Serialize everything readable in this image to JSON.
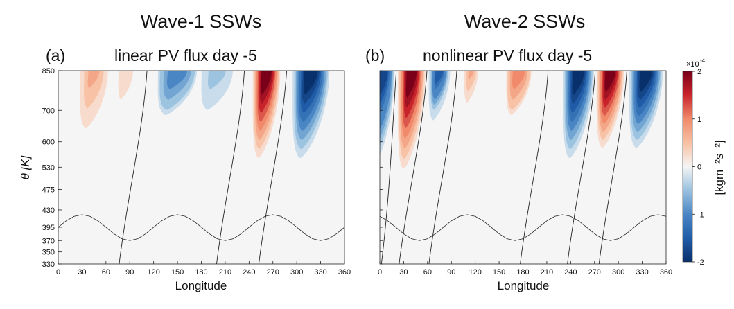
{
  "headings": {
    "left": "Wave-1 SSWs",
    "right": "Wave-2 SSWs"
  },
  "colors": {
    "neg_strong": "#08306b",
    "neg_mid": "#4a86c4",
    "neutral": "#f5f5f5",
    "pos_mid": "#f08a6a",
    "pos_strong": "#7a0019",
    "contour": "#222222"
  },
  "chart_data": [
    {
      "type": "heatmap",
      "panel": "(a)",
      "title": "linear PV flux day -5",
      "xlabel": "Longitude",
      "ylabel": "θ [K]",
      "xlim": [
        0,
        360
      ],
      "x_ticks": [
        0,
        30,
        60,
        90,
        120,
        150,
        180,
        210,
        240,
        270,
        300,
        330,
        360
      ],
      "y_ticks": [
        330,
        350,
        370,
        395,
        430,
        475,
        530,
        600,
        700,
        850
      ],
      "zero_contour": "black",
      "features": [
        {
          "lon": 45,
          "theta_top": 850,
          "theta_bottom": 600,
          "peak": 7e-05,
          "width": 20
        },
        {
          "lon": 85,
          "theta_top": 850,
          "theta_bottom": 650,
          "peak": 2.5e-05,
          "width": 15
        },
        {
          "lon": 150,
          "theta_top": 850,
          "theta_bottom": 650,
          "peak": -0.00011,
          "width": 28
        },
        {
          "lon": 200,
          "theta_top": 850,
          "theta_bottom": 650,
          "peak": -5e-05,
          "width": 25
        },
        {
          "lon": 262,
          "theta_top": 850,
          "theta_bottom": 530,
          "peak": 0.0002,
          "width": 18
        },
        {
          "lon": 318,
          "theta_top": 850,
          "theta_bottom": 530,
          "peak": -0.00019,
          "width": 24
        }
      ]
    },
    {
      "type": "heatmap",
      "panel": "(b)",
      "title": "nonlinear PV flux day -5",
      "xlabel": "Longitude",
      "ylabel": "",
      "xlim": [
        0,
        360
      ],
      "x_ticks": [
        0,
        30,
        60,
        90,
        120,
        150,
        180,
        210,
        240,
        270,
        300,
        330,
        360
      ],
      "y_ticks": [
        330,
        350,
        370,
        395,
        430,
        475,
        530,
        600,
        700,
        850
      ],
      "zero_contour": "black",
      "features": [
        {
          "lon": 5,
          "theta_top": 850,
          "theta_bottom": 530,
          "peak": -0.00018,
          "width": 14
        },
        {
          "lon": 40,
          "theta_top": 850,
          "theta_bottom": 500,
          "peak": 0.0002,
          "width": 18
        },
        {
          "lon": 75,
          "theta_top": 850,
          "theta_bottom": 650,
          "peak": -0.00015,
          "width": 14
        },
        {
          "lon": 115,
          "theta_top": 850,
          "theta_bottom": 700,
          "peak": 7e-05,
          "width": 10
        },
        {
          "lon": 175,
          "theta_top": 850,
          "theta_bottom": 650,
          "peak": 0.0001,
          "width": 18
        },
        {
          "lon": 250,
          "theta_top": 850,
          "theta_bottom": 530,
          "peak": -0.0002,
          "width": 20
        },
        {
          "lon": 290,
          "theta_top": 850,
          "theta_bottom": 560,
          "peak": 0.0002,
          "width": 18
        },
        {
          "lon": 335,
          "theta_top": 850,
          "theta_bottom": 560,
          "peak": -0.0002,
          "width": 22
        }
      ]
    }
  ],
  "colorbar": {
    "label": "[kgm⁻²s⁻²]",
    "exponent_base": "×10",
    "exponent": "-4",
    "ticks": [
      -2,
      -1,
      0,
      1,
      2
    ],
    "range": [
      -2,
      2
    ]
  }
}
